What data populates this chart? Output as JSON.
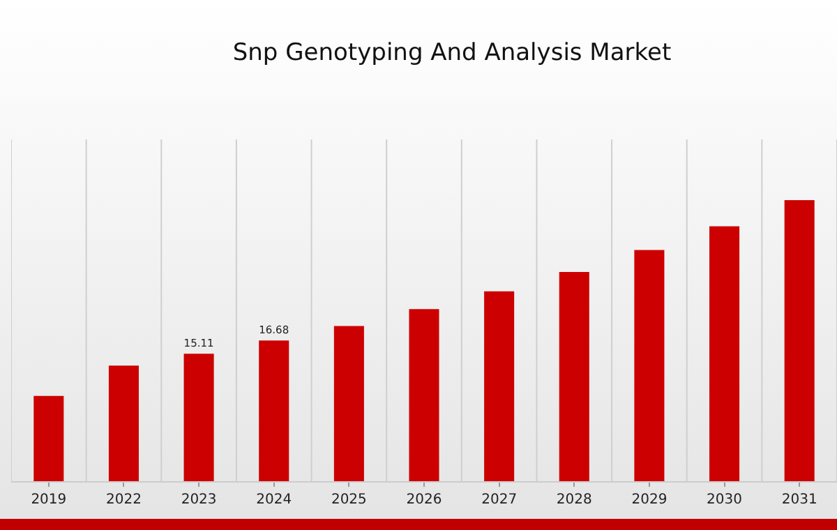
{
  "chart_data": {
    "type": "bar",
    "title": "Snp Genotyping And Analysis Market",
    "categories": [
      "2019",
      "2022",
      "2023",
      "2024",
      "2025",
      "2026",
      "2027",
      "2028",
      "2029",
      "2030",
      "2031"
    ],
    "values": [
      10.1,
      13.7,
      15.11,
      16.68,
      18.4,
      20.4,
      22.5,
      24.8,
      27.4,
      30.2,
      33.3
    ],
    "value_labels": [
      null,
      null,
      "15.11",
      "16.68",
      null,
      null,
      null,
      null,
      null,
      null,
      null
    ],
    "color": "#cc0000",
    "ylim": [
      0,
      40.5
    ],
    "tick_labels": "x",
    "grid": "x"
  }
}
